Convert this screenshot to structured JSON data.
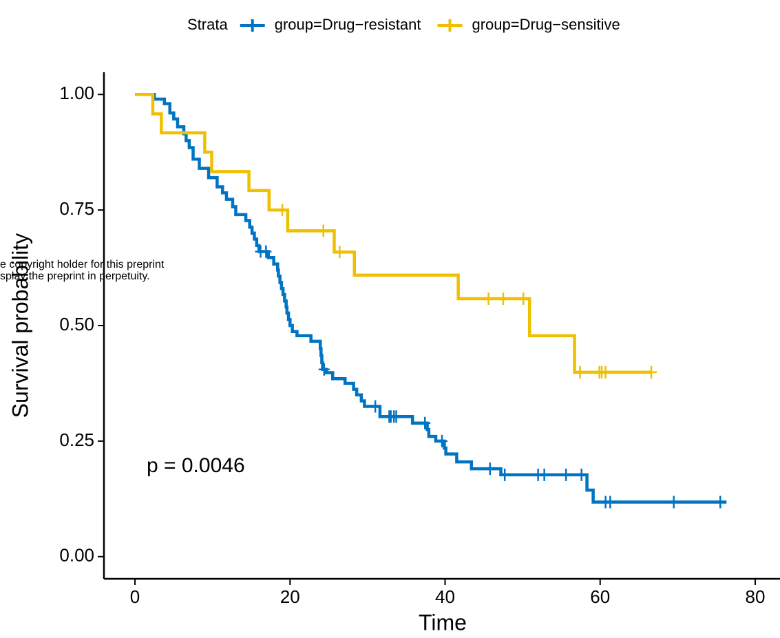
{
  "chart_data": {
    "type": "survival",
    "legend_title": "Strata",
    "legend_position": "top",
    "xlabel": "Time",
    "ylabel": "Survival probability",
    "annotation": "p = 0.0046",
    "watermark": [
      "e copyright holder for this preprint",
      "splay the preprint in perpetuity."
    ],
    "xlim": [
      -4,
      83.2
    ],
    "ylim": [
      -0.048,
      1.048
    ],
    "xticks": [
      0,
      20,
      40,
      60,
      80
    ],
    "yticks": [
      {
        "value": 0,
        "label": "0.00"
      },
      {
        "value": 0.25,
        "label": "0.25"
      },
      {
        "value": 0.5,
        "label": "0.50"
      },
      {
        "value": 0.75,
        "label": "0.75"
      },
      {
        "value": 1,
        "label": "1.00"
      }
    ],
    "series": [
      {
        "name": "group=Drug−resistant",
        "color": "#0073C2",
        "x": [
          0,
          2.5,
          3.8,
          4.5,
          5.0,
          5.5,
          6.3,
          6.6,
          7.0,
          7.5,
          8.3,
          9.5,
          10.6,
          11.3,
          11.8,
          12.6,
          13.0,
          14.3,
          14.8,
          15.1,
          15.4,
          15.7,
          16.0,
          17.2,
          17.9,
          18.4,
          18.5,
          18.7,
          18.9,
          19.1,
          19.3,
          19.5,
          19.6,
          19.8,
          20.0,
          20.3,
          20.9,
          22.7,
          23.9,
          24.0,
          24.1,
          24.2,
          24.7,
          25.5,
          27.1,
          28.2,
          28.6,
          29.2,
          29.6,
          31.6,
          35.8,
          37.7,
          37.9,
          38.8,
          39.9,
          40.1,
          41.5,
          43.4,
          47.2,
          58.3,
          59.1,
          76.3
        ],
        "values": [
          1.0,
          0.99,
          0.98,
          0.96,
          0.947,
          0.93,
          0.915,
          0.9,
          0.885,
          0.86,
          0.84,
          0.82,
          0.8,
          0.787,
          0.773,
          0.757,
          0.74,
          0.727,
          0.713,
          0.7,
          0.687,
          0.673,
          0.66,
          0.647,
          0.633,
          0.62,
          0.607,
          0.593,
          0.58,
          0.567,
          0.553,
          0.54,
          0.527,
          0.513,
          0.5,
          0.487,
          0.478,
          0.466,
          0.45,
          0.435,
          0.42,
          0.405,
          0.398,
          0.385,
          0.375,
          0.362,
          0.35,
          0.337,
          0.325,
          0.303,
          0.289,
          0.275,
          0.26,
          0.25,
          0.235,
          0.222,
          0.205,
          0.19,
          0.177,
          0.144,
          0.118,
          0.118
        ],
        "censor_x": [
          16.2,
          16.9,
          24.4,
          31.0,
          32.8,
          33.0,
          33.4,
          33.7,
          37.4,
          39.6,
          45.8,
          47.7,
          52.0,
          52.8,
          55.6,
          57.6,
          60.7,
          61.3,
          69.5,
          75.5
        ],
        "censor_y": [
          0.66,
          0.66,
          0.405,
          0.325,
          0.303,
          0.303,
          0.303,
          0.303,
          0.289,
          0.25,
          0.19,
          0.177,
          0.177,
          0.177,
          0.177,
          0.177,
          0.118,
          0.118,
          0.118,
          0.118
        ]
      },
      {
        "name": "group=Drug−sensitive",
        "color": "#EFC000",
        "x": [
          0,
          2.3,
          3.4,
          9.0,
          9.9,
          14.7,
          17.3,
          19.7,
          25.7,
          28.3,
          41.7,
          50.9,
          56.7,
          66.6
        ],
        "values": [
          1.0,
          0.958,
          0.917,
          0.875,
          0.833,
          0.792,
          0.75,
          0.705,
          0.659,
          0.609,
          0.558,
          0.478,
          0.399,
          0.399
        ],
        "censor_x": [
          19.0,
          24.3,
          26.4,
          45.6,
          47.5,
          50.1,
          57.4,
          59.9,
          60.2,
          60.7,
          66.6
        ],
        "censor_y": [
          0.75,
          0.705,
          0.659,
          0.558,
          0.558,
          0.558,
          0.399,
          0.399,
          0.399,
          0.399,
          0.399
        ]
      }
    ]
  }
}
